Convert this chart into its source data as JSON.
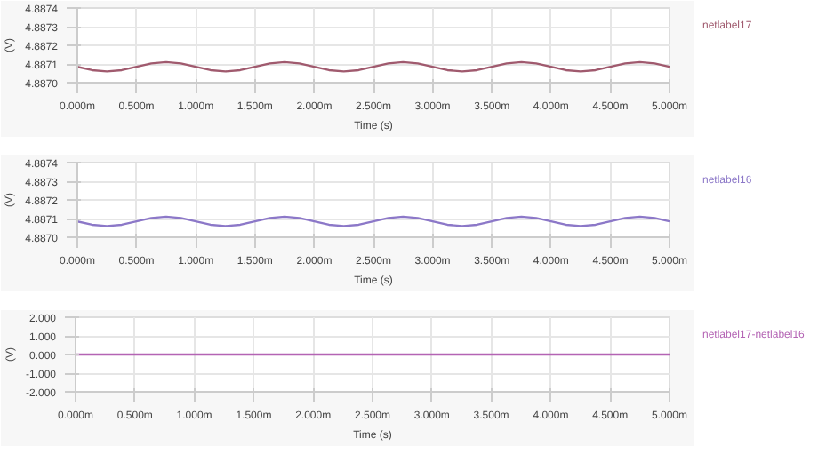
{
  "chart_data": [
    {
      "type": "line",
      "xlabel": "Time (s)",
      "ylabel": "(V)",
      "legend": "top right",
      "grid": true,
      "x": [
        0,
        0.125,
        0.25,
        0.375,
        0.5,
        0.625,
        0.75,
        0.875,
        1,
        1.125,
        1.25,
        1.375,
        1.5,
        1.625,
        1.75,
        1.875,
        2,
        2.125,
        2.25,
        2.375,
        2.5,
        2.625,
        2.75,
        2.875,
        3,
        3.125,
        3.25,
        3.375,
        3.5,
        3.625,
        3.75,
        3.875,
        4,
        4.125,
        4.25,
        4.375,
        4.5,
        4.625,
        4.75,
        4.875,
        5
      ],
      "series": [
        {
          "name": "netlabel17",
          "color": "#a05a6e",
          "values": [
            4.887085,
            4.887067,
            4.88706,
            4.887067,
            4.887085,
            4.887103,
            4.88711,
            4.887103,
            4.887085,
            4.887067,
            4.88706,
            4.887067,
            4.887085,
            4.887103,
            4.88711,
            4.887103,
            4.887085,
            4.887067,
            4.88706,
            4.887067,
            4.887085,
            4.887103,
            4.88711,
            4.887103,
            4.887085,
            4.887067,
            4.88706,
            4.887067,
            4.887085,
            4.887103,
            4.88711,
            4.887103,
            4.887085,
            4.887067,
            4.88706,
            4.887067,
            4.887085,
            4.887103,
            4.88711,
            4.887103,
            4.887085
          ]
        }
      ],
      "xlim": [
        0,
        5
      ],
      "ylim": [
        4.887,
        4.8874
      ],
      "xticks": [
        {
          "value": 0,
          "label": "0.000m"
        },
        {
          "value": 0.5,
          "label": "0.500m"
        },
        {
          "value": 1,
          "label": "1.000m"
        },
        {
          "value": 1.5,
          "label": "1.500m"
        },
        {
          "value": 2,
          "label": "2.000m"
        },
        {
          "value": 2.5,
          "label": "2.500m"
        },
        {
          "value": 3,
          "label": "3.000m"
        },
        {
          "value": 3.5,
          "label": "3.500m"
        },
        {
          "value": 4,
          "label": "4.000m"
        },
        {
          "value": 4.5,
          "label": "4.500m"
        },
        {
          "value": 5,
          "label": "5.000m"
        }
      ],
      "yticks": [
        {
          "value": 4.887,
          "label": "4.8870"
        },
        {
          "value": 4.8871,
          "label": "4.8871"
        },
        {
          "value": 4.8872,
          "label": "4.8872"
        },
        {
          "value": 4.8873,
          "label": "4.8873"
        },
        {
          "value": 4.8874,
          "label": "4.8874"
        }
      ]
    },
    {
      "type": "line",
      "xlabel": "Time (s)",
      "ylabel": "(V)",
      "legend": "top right",
      "grid": true,
      "x": [
        0,
        0.125,
        0.25,
        0.375,
        0.5,
        0.625,
        0.75,
        0.875,
        1,
        1.125,
        1.25,
        1.375,
        1.5,
        1.625,
        1.75,
        1.875,
        2,
        2.125,
        2.25,
        2.375,
        2.5,
        2.625,
        2.75,
        2.875,
        3,
        3.125,
        3.25,
        3.375,
        3.5,
        3.625,
        3.75,
        3.875,
        4,
        4.125,
        4.25,
        4.375,
        4.5,
        4.625,
        4.75,
        4.875,
        5
      ],
      "series": [
        {
          "name": "netlabel16",
          "color": "#8c78c8",
          "values": [
            4.887085,
            4.887067,
            4.88706,
            4.887067,
            4.887085,
            4.887103,
            4.88711,
            4.887103,
            4.887085,
            4.887067,
            4.88706,
            4.887067,
            4.887085,
            4.887103,
            4.88711,
            4.887103,
            4.887085,
            4.887067,
            4.88706,
            4.887067,
            4.887085,
            4.887103,
            4.88711,
            4.887103,
            4.887085,
            4.887067,
            4.88706,
            4.887067,
            4.887085,
            4.887103,
            4.88711,
            4.887103,
            4.887085,
            4.887067,
            4.88706,
            4.887067,
            4.887085,
            4.887103,
            4.88711,
            4.887103,
            4.887085
          ]
        }
      ],
      "xlim": [
        0,
        5
      ],
      "ylim": [
        4.887,
        4.8874
      ],
      "xticks": [
        {
          "value": 0,
          "label": "0.000m"
        },
        {
          "value": 0.5,
          "label": "0.500m"
        },
        {
          "value": 1,
          "label": "1.000m"
        },
        {
          "value": 1.5,
          "label": "1.500m"
        },
        {
          "value": 2,
          "label": "2.000m"
        },
        {
          "value": 2.5,
          "label": "2.500m"
        },
        {
          "value": 3,
          "label": "3.000m"
        },
        {
          "value": 3.5,
          "label": "3.500m"
        },
        {
          "value": 4,
          "label": "4.000m"
        },
        {
          "value": 4.5,
          "label": "4.500m"
        },
        {
          "value": 5,
          "label": "5.000m"
        }
      ],
      "yticks": [
        {
          "value": 4.887,
          "label": "4.8870"
        },
        {
          "value": 4.8871,
          "label": "4.8871"
        },
        {
          "value": 4.8872,
          "label": "4.8872"
        },
        {
          "value": 4.8873,
          "label": "4.8873"
        },
        {
          "value": 4.8874,
          "label": "4.8874"
        }
      ]
    },
    {
      "type": "line",
      "xlabel": "Time (s)",
      "ylabel": "(V)",
      "legend": "top right",
      "grid": true,
      "x": [
        0,
        5
      ],
      "series": [
        {
          "name": "netlabel17-netlabel16",
          "color": "#b464b4",
          "values": [
            0,
            0
          ]
        }
      ],
      "xlim": [
        0,
        5
      ],
      "ylim": [
        -2,
        2
      ],
      "xticks": [
        {
          "value": 0,
          "label": "0.000m"
        },
        {
          "value": 0.5,
          "label": "0.500m"
        },
        {
          "value": 1,
          "label": "1.000m"
        },
        {
          "value": 1.5,
          "label": "1.500m"
        },
        {
          "value": 2,
          "label": "2.000m"
        },
        {
          "value": 2.5,
          "label": "2.500m"
        },
        {
          "value": 3,
          "label": "3.000m"
        },
        {
          "value": 3.5,
          "label": "3.500m"
        },
        {
          "value": 4,
          "label": "4.000m"
        },
        {
          "value": 4.5,
          "label": "4.500m"
        },
        {
          "value": 5,
          "label": "5.000m"
        }
      ],
      "yticks": [
        {
          "value": -2,
          "label": "-2.000"
        },
        {
          "value": -1,
          "label": "-1.000"
        },
        {
          "value": 0,
          "label": "0.000"
        },
        {
          "value": 1,
          "label": "1.000"
        },
        {
          "value": 2,
          "label": "2.000"
        }
      ]
    }
  ]
}
